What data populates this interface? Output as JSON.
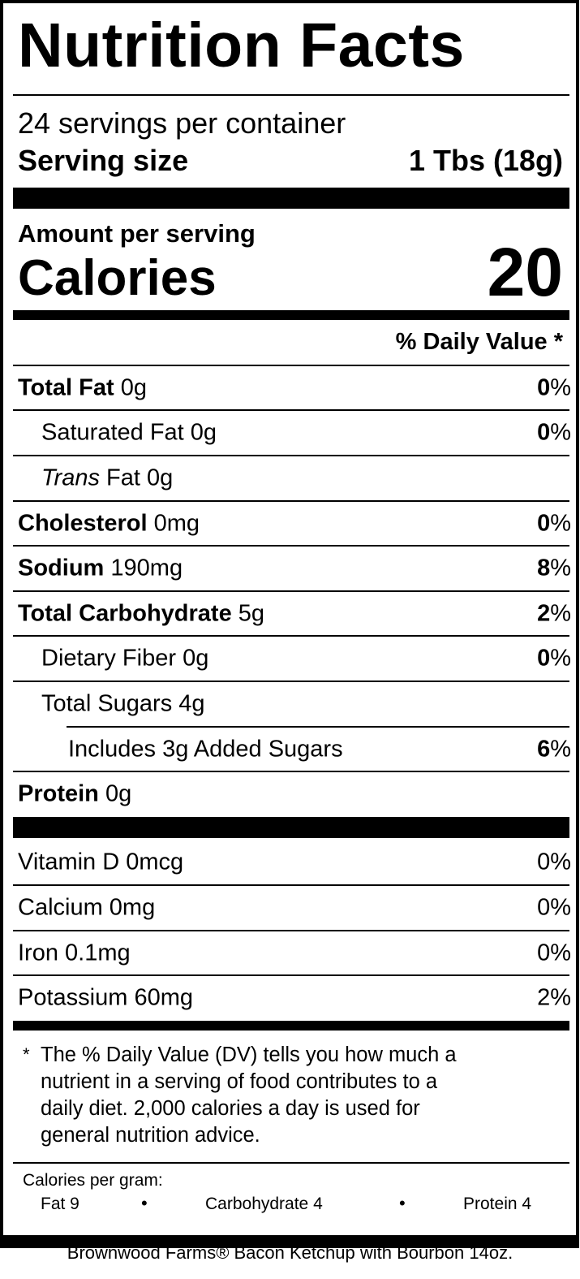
{
  "title": "Nutrition Facts",
  "servings_per_container": "24 servings per container",
  "serving_size_label": "Serving size",
  "serving_size_value": "1 Tbs (18g)",
  "amount_per_serving": "Amount per serving",
  "calories_label": "Calories",
  "calories_value": "20",
  "daily_value_header": "% Daily Value *",
  "nutrients": [
    {
      "name": "Total Fat",
      "amount": "0g",
      "dv_num": "0",
      "dv_sym": "%"
    },
    {
      "name": "Saturated Fat",
      "amount": "0g",
      "dv_num": "0",
      "dv_sym": "%"
    },
    {
      "name_italic": "Trans",
      "name_rest": "Fat",
      "amount": "0g"
    },
    {
      "name": "Cholesterol",
      "amount": "0mg",
      "dv_num": "0",
      "dv_sym": "%"
    },
    {
      "name": "Sodium",
      "amount": "190mg",
      "dv_num": "8",
      "dv_sym": "%"
    },
    {
      "name": "Total Carbohydrate",
      "amount": "5g",
      "dv_num": "2",
      "dv_sym": "%"
    },
    {
      "name": "Dietary Fiber",
      "amount": "0g",
      "dv_num": "0",
      "dv_sym": "%"
    },
    {
      "name": "Total Sugars",
      "amount": "4g"
    },
    {
      "name": "Includes 3g Added Sugars",
      "dv_num": "6",
      "dv_sym": "%"
    },
    {
      "name": "Protein",
      "amount": "0g"
    }
  ],
  "vitamins": [
    {
      "text": "Vitamin D 0mcg",
      "dv": "0%"
    },
    {
      "text": "Calcium 0mg",
      "dv": "0%"
    },
    {
      "text": "Iron 0.1mg",
      "dv": "0%"
    },
    {
      "text": "Potassium 60mg",
      "dv": "2%"
    }
  ],
  "footnote_star": "*",
  "footnote_lines": [
    "The % Daily Value (DV) tells you how much a",
    "nutrient in a serving of food contributes to a",
    "daily diet. 2,000 calories a day is used for",
    "general nutrition advice."
  ],
  "calories_per_gram_label": "Calories per gram:",
  "cpg_fat": "Fat 9",
  "cpg_carb": "Carbohydrate 4",
  "cpg_protein": "Protein 4",
  "bullet": "•",
  "product_caption": "Brownwood Farms® Bacon Ketchup with Bourbon 14oz."
}
